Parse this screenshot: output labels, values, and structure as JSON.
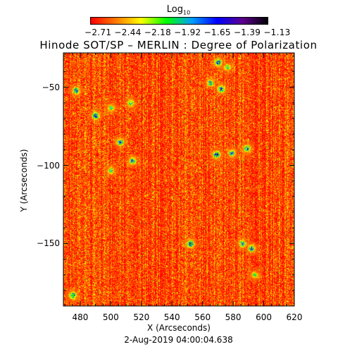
{
  "colorbar": {
    "title_main": "Log",
    "title_sub": "10",
    "ticks": [
      "-2.71",
      "-2.44",
      "-2.18",
      "-1.92",
      "-1.65",
      "-1.39",
      "-1.13"
    ],
    "colors": [
      "#ff0000",
      "#ff7a00",
      "#ffff00",
      "#00ff00",
      "#00a0ff",
      "#0000ff",
      "#600090",
      "#000000"
    ]
  },
  "chart_data": {
    "type": "heatmap",
    "title": "Hinode SOT/SP – MERLIN : Degree of Polarization",
    "xlabel": "X (Arcseconds)",
    "ylabel": "Y (Arcseconds)",
    "xlim": [
      469,
      620
    ],
    "ylim": [
      -190,
      -28
    ],
    "x_ticks": [
      480,
      500,
      520,
      540,
      560,
      580,
      600,
      620
    ],
    "y_ticks": [
      -50,
      -100,
      -150
    ],
    "value_scale": "log10",
    "value_range": [
      -2.71,
      -1.13
    ],
    "background_value": -2.6,
    "features": [
      {
        "x": 477,
        "y": -52,
        "value": -1.4
      },
      {
        "x": 490,
        "y": -68,
        "value": -1.3
      },
      {
        "x": 500,
        "y": -63,
        "value": -1.8
      },
      {
        "x": 506,
        "y": -85,
        "value": -1.5
      },
      {
        "x": 514,
        "y": -97,
        "value": -1.5
      },
      {
        "x": 513,
        "y": -60,
        "value": -1.8
      },
      {
        "x": 500,
        "y": -103,
        "value": -1.8
      },
      {
        "x": 475,
        "y": -183,
        "value": -1.3
      },
      {
        "x": 552,
        "y": -150,
        "value": -1.2
      },
      {
        "x": 569,
        "y": -93,
        "value": -1.2
      },
      {
        "x": 579,
        "y": -92,
        "value": -1.5
      },
      {
        "x": 589,
        "y": -89,
        "value": -1.5
      },
      {
        "x": 592,
        "y": -153,
        "value": -1.4
      },
      {
        "x": 586,
        "y": -150,
        "value": -1.6
      },
      {
        "x": 594,
        "y": -170,
        "value": -1.9
      },
      {
        "x": 570,
        "y": -34,
        "value": -1.3
      },
      {
        "x": 565,
        "y": -47,
        "value": -1.4
      },
      {
        "x": 572,
        "y": -51,
        "value": -1.4
      },
      {
        "x": 576,
        "y": -37,
        "value": -1.8
      }
    ]
  },
  "date_stamp": "2-Aug-2019 04:00:04.638"
}
